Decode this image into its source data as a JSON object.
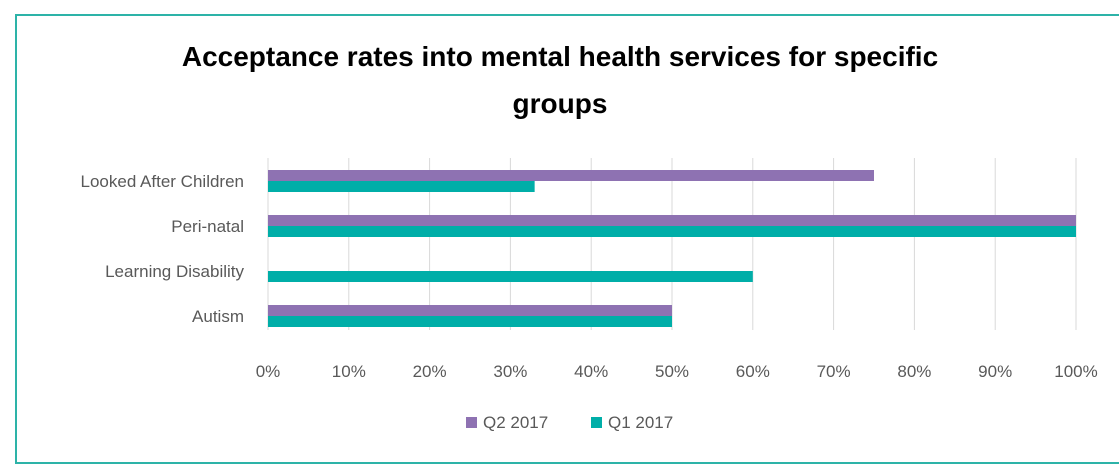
{
  "chart_data": {
    "type": "bar",
    "orientation": "horizontal",
    "title_lines": [
      "Acceptance rates into mental health services for specific",
      "groups"
    ],
    "categories": [
      "Looked After Children",
      "Peri-natal",
      "Learning Disability",
      "Autism"
    ],
    "series": [
      {
        "name": "Q2 2017",
        "color": "#8e72b2",
        "values": [
          0.75,
          1.0,
          0.0,
          0.5
        ]
      },
      {
        "name": "Q1 2017",
        "color": "#00aea8",
        "values": [
          0.33,
          1.0,
          0.6,
          0.5
        ]
      }
    ],
    "x_ticks": [
      "0%",
      "10%",
      "20%",
      "30%",
      "40%",
      "50%",
      "60%",
      "70%",
      "80%",
      "90%",
      "100%"
    ],
    "xlim": [
      0,
      1
    ],
    "grid": true,
    "legend_position": "bottom"
  }
}
